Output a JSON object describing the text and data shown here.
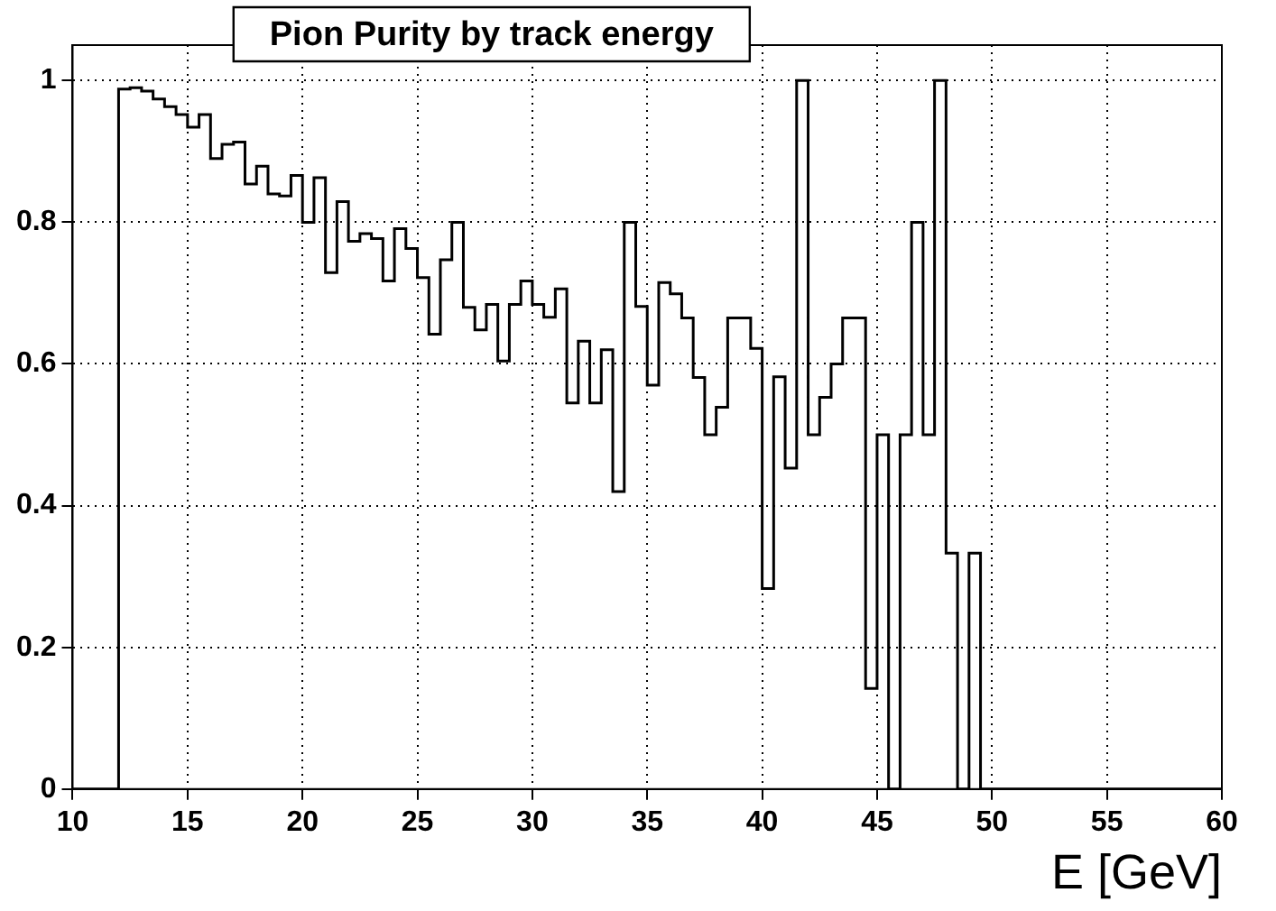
{
  "chart_data": {
    "type": "histogram",
    "title": "Pion Purity by track energy",
    "xlabel": "E [GeV]",
    "bins": [
      10,
      10.5,
      11,
      11.5,
      12,
      12.5,
      13,
      13.5,
      14,
      14.5,
      15,
      15.5,
      16,
      16.5,
      17,
      17.5,
      18,
      18.5,
      19,
      19.5,
      20,
      20.5,
      21,
      21.5,
      22,
      22.5,
      23,
      23.5,
      24,
      24.5,
      25,
      25.5,
      26,
      26.5,
      27,
      27.5,
      28,
      28.5,
      29,
      29.5,
      30,
      30.5,
      31,
      31.5,
      32,
      32.5,
      33,
      33.5,
      34,
      34.5,
      35,
      35.5,
      36,
      36.5,
      37,
      37.5,
      38,
      38.5,
      39,
      39.5,
      40,
      40.5,
      41,
      41.5,
      42,
      42.5,
      43,
      43.5,
      44,
      44.5,
      45,
      45.5,
      46,
      46.5,
      47,
      47.5,
      48,
      48.5,
      49,
      49.5,
      50,
      50.5,
      51,
      51.5,
      52,
      52.5,
      53,
      53.5,
      54,
      54.5,
      55,
      55.5,
      56,
      56.5,
      57,
      57.5,
      58,
      58.5,
      59,
      59.5,
      60
    ],
    "values": [
      0,
      0,
      0,
      0,
      0.988,
      0.99,
      0.985,
      0.974,
      0.963,
      0.952,
      0.934,
      0.952,
      0.89,
      0.91,
      0.913,
      0.854,
      0.879,
      0.84,
      0.837,
      0.866,
      0.8,
      0.863,
      0.729,
      0.829,
      0.773,
      0.784,
      0.777,
      0.717,
      0.791,
      0.763,
      0.722,
      0.642,
      0.747,
      0.8,
      0.68,
      0.648,
      0.684,
      0.604,
      0.684,
      0.717,
      0.684,
      0.666,
      0.706,
      0.545,
      0.632,
      0.545,
      0.62,
      0.42,
      0.8,
      0.681,
      0.57,
      0.715,
      0.699,
      0.665,
      0.581,
      0.5,
      0.539,
      0.665,
      0.665,
      0.622,
      0.283,
      0.582,
      0.453,
      1,
      0.5,
      0.553,
      0.6,
      0.665,
      0.665,
      0.142,
      0.5,
      0,
      0.5,
      0.8,
      0.5,
      1,
      0.333,
      0,
      0.333,
      0,
      0,
      0,
      0,
      0,
      0,
      0,
      0,
      0,
      0,
      0,
      0,
      0,
      0,
      0,
      0,
      0,
      0,
      0,
      0,
      0
    ],
    "color": "#000000",
    "xlim": [
      10,
      60
    ],
    "ylim": [
      0,
      1.05
    ],
    "xticks": [
      10,
      15,
      20,
      25,
      30,
      35,
      40,
      45,
      50,
      55,
      60
    ],
    "yticks": [
      0,
      0.2,
      0.4,
      0.6,
      0.8,
      1
    ],
    "grid": true,
    "legend": false
  }
}
